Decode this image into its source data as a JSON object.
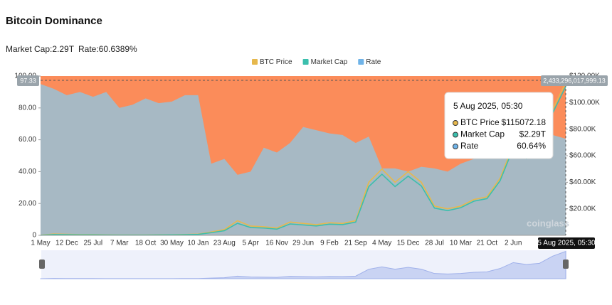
{
  "header": {
    "title": "Bitcoin Dominance",
    "market_cap": "Market Cap:2.29T",
    "rate": "Rate:60.6389%"
  },
  "chart_data": {
    "type": "line",
    "categories": [
      "1 May",
      null,
      "12 Dec",
      null,
      "25 Jul",
      null,
      "7 Mar",
      null,
      "18 Oct",
      null,
      "30 May",
      null,
      "10 Jan",
      null,
      "23 Aug",
      null,
      "5 Apr",
      null,
      "16 Nov",
      null,
      "29 Jun",
      null,
      "9 Feb",
      null,
      "21 Sep",
      null,
      "4 May",
      null,
      "15 Dec",
      null,
      "28 Jul",
      null,
      "10 Mar",
      null,
      "21 Oct",
      null,
      "2 Jun",
      null,
      null,
      null,
      "5 Aug 2025, 05:30"
    ],
    "ylim": [
      0,
      100
    ],
    "yticks": [
      {
        "value": 0,
        "label": "0"
      },
      {
        "value": 20,
        "label": "20.00"
      },
      {
        "value": 40,
        "label": "40.00"
      },
      {
        "value": 60,
        "label": "60.00"
      },
      {
        "value": 80,
        "label": "80.00"
      },
      {
        "value": 100,
        "label": "100.00"
      }
    ],
    "y2lim": [
      0,
      120000
    ],
    "y2ticks": [
      {
        "value": 20000,
        "label": "$20.00K"
      },
      {
        "value": 40000,
        "label": "$40.00K"
      },
      {
        "value": 60000,
        "label": "$60.00K"
      },
      {
        "value": 80000,
        "label": "$80.00K"
      },
      {
        "value": 100000,
        "label": "$100.00K"
      },
      {
        "value": 120000,
        "label": "$120.00K"
      }
    ],
    "y3lim": [
      0,
      2450000000000
    ],
    "series": [
      {
        "name": "BTC Price",
        "color": "#e6b84d",
        "axis": "y2",
        "values": [
          130,
          1000,
          800,
          600,
          600,
          350,
          270,
          240,
          270,
          420,
          450,
          650,
          900,
          2500,
          4300,
          11000,
          7000,
          6500,
          5500,
          10000,
          9000,
          8000,
          9500,
          9000,
          11000,
          40000,
          50000,
          40000,
          48000,
          40000,
          22000,
          20000,
          22000,
          27000,
          29000,
          43000,
          68000,
          60000,
          65000,
          95000,
          115072.18
        ]
      },
      {
        "name": "Market Cap",
        "color": "#3bbfad",
        "axis": "y3",
        "values": [
          1400000000.0,
          12000000000.0,
          10000000000.0,
          7500000000.0,
          8000000000.0,
          4600000000.0,
          3700000000.0,
          3400000000.0,
          3900000000.0,
          6300000000.0,
          7000000000.0,
          10300000000.0,
          14500000000.0,
          41000000000.0,
          71000000000.0,
          185000000000.0,
          120000000000.0,
          112000000000.0,
          95000000000.0,
          175000000000.0,
          160000000000.0,
          144000000000.0,
          172000000000.0,
          165000000000.0,
          203000000000.0,
          750000000000.0,
          940000000000.0,
          750000000000.0,
          910000000000.0,
          760000000000.0,
          420000000000.0,
          380000000000.0,
          425000000000.0,
          525000000000.0,
          565000000000.0,
          840000000000.0,
          1340000000000.0,
          1180000000000.0,
          1280000000000.0,
          1880000000000.0,
          2290000000000.0
        ]
      },
      {
        "name": "Rate",
        "color": "#6fb3e8",
        "style": "area",
        "fill": "#a7b9c4",
        "values": [
          95,
          92,
          88,
          90,
          87,
          90,
          80,
          82,
          86,
          83,
          84,
          88,
          88,
          45,
          48,
          38,
          40,
          55,
          52,
          58,
          68,
          66,
          64,
          63,
          58,
          62,
          42,
          42,
          40,
          43,
          42,
          40,
          45,
          48,
          52,
          53,
          56,
          56,
          58,
          63,
          60.64
        ]
      }
    ],
    "background_color": "#fb8c5a",
    "crosshair_left_label": "97.33",
    "crosshair_right_label": "2,433,296,017,999.13",
    "tooltip_values": [
      "$115072.18",
      "$2.29T",
      "60.64%"
    ],
    "watermark": "coinglass"
  }
}
